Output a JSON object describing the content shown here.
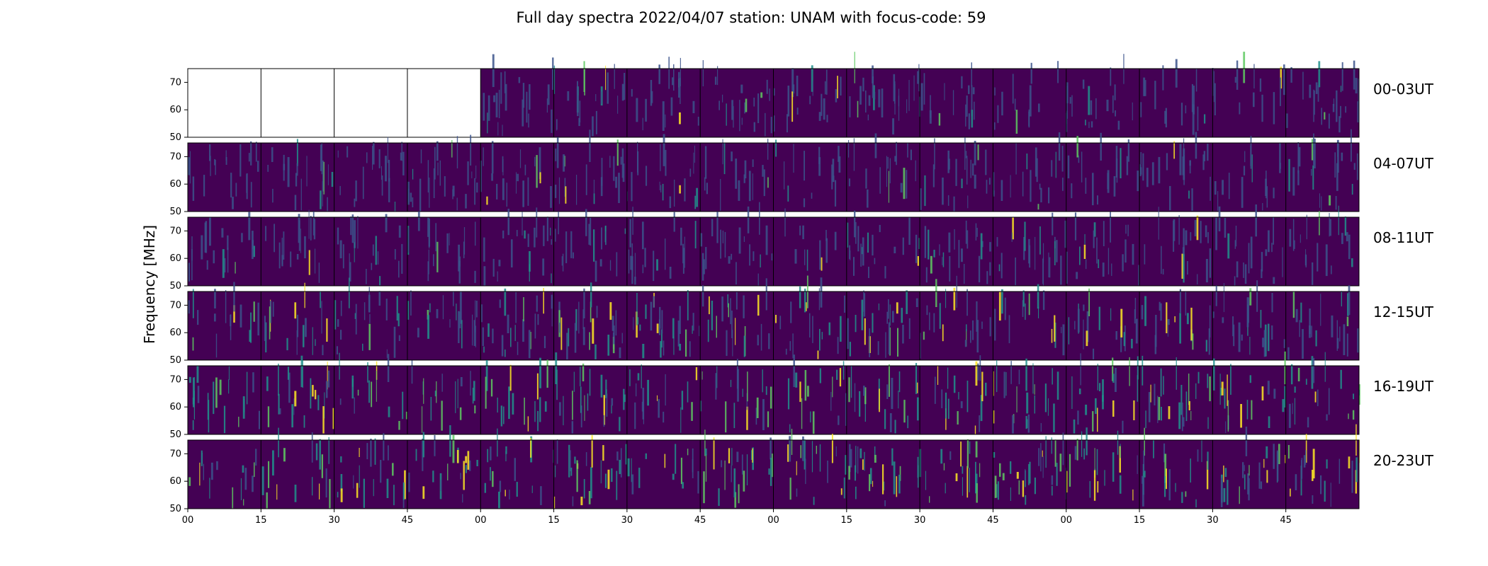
{
  "chart_data": {
    "type": "heatmap",
    "title": "Full day spectra 2022/04/07 station: UNAM with focus-code: 59",
    "ylabel": "Frequency [MHz]",
    "xlabel": "",
    "ylim": [
      50,
      75
    ],
    "y_ticks": [
      50,
      60,
      70
    ],
    "x_tick_labels": [
      "00",
      "15",
      "30",
      "45",
      "00",
      "15",
      "30",
      "45",
      "00",
      "15",
      "30",
      "45",
      "00",
      "15",
      "30",
      "45"
    ],
    "rows": [
      {
        "label": "00-03UT",
        "empty_segments": 4,
        "activity": "low"
      },
      {
        "label": "04-07UT",
        "empty_segments": 0,
        "activity": "low"
      },
      {
        "label": "08-11UT",
        "empty_segments": 0,
        "activity": "low"
      },
      {
        "label": "12-15UT",
        "empty_segments": 0,
        "activity": "moderate"
      },
      {
        "label": "16-19UT",
        "empty_segments": 0,
        "activity": "high"
      },
      {
        "label": "20-23UT",
        "empty_segments": 0,
        "activity": "high"
      }
    ],
    "segments_per_row": 16,
    "colormap": [
      "#440154",
      "#3b528b",
      "#21918c",
      "#5ec962",
      "#fde725"
    ],
    "grid": false
  }
}
